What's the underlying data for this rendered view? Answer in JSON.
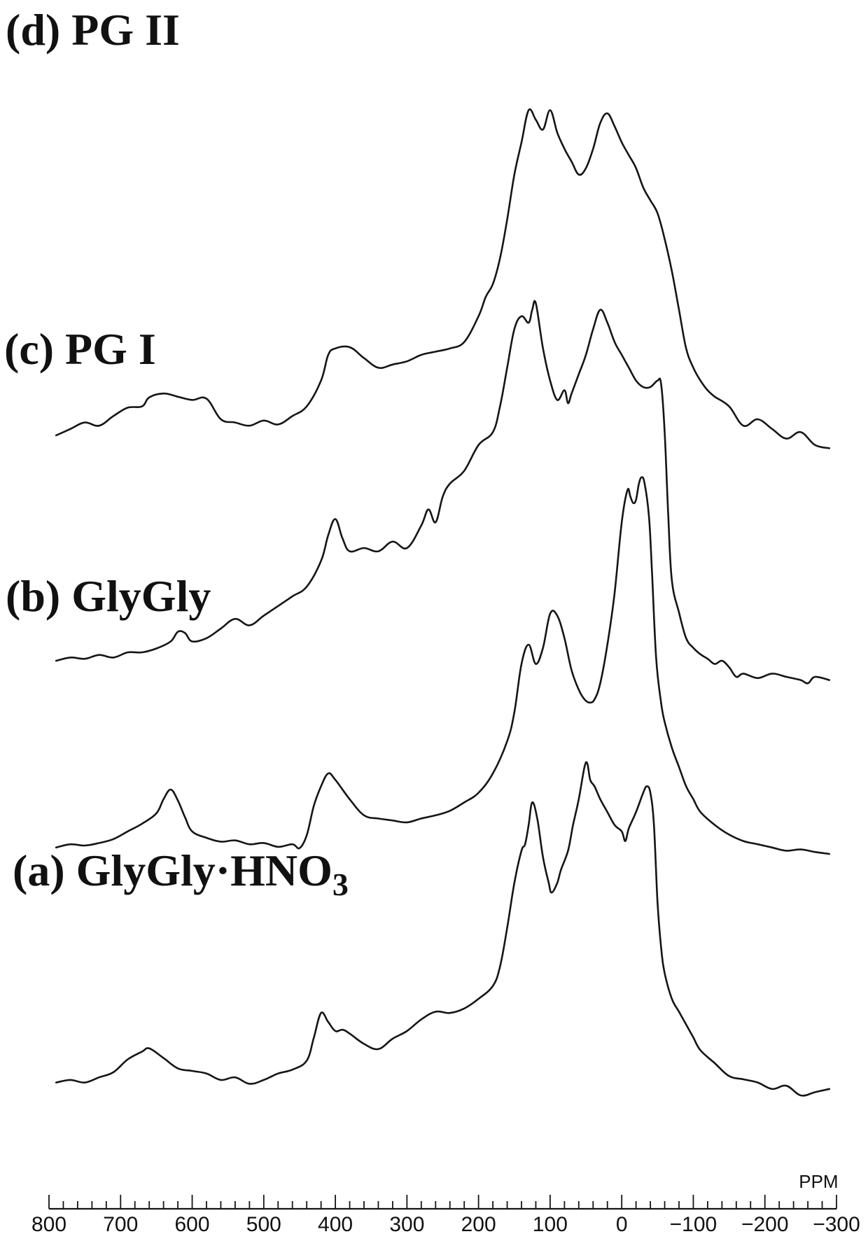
{
  "chart_data": {
    "type": "line",
    "title": "",
    "xlabel": "",
    "ylabel": "",
    "xunit": "PPM",
    "xlim": [
      800,
      -300
    ],
    "x_reversed": true,
    "xticks": [
      800,
      700,
      600,
      500,
      400,
      300,
      200,
      100,
      0,
      -100,
      -200,
      -300
    ],
    "xtick_labels": [
      "800",
      "700",
      "600",
      "500",
      "400",
      "300",
      "200",
      "100",
      "0",
      "−100",
      "−200",
      "−300"
    ],
    "minor_tick_step": 20,
    "grid": false,
    "legend": "none",
    "offset_units": "relative intensity (stacked, 0 = baseline of bottom spectrum)",
    "series": [
      {
        "name": "(a) GlyGly·HNO",
        "subscript": "3",
        "offset": 0,
        "points": [
          [
            790,
            20
          ],
          [
            770,
            24
          ],
          [
            750,
            20
          ],
          [
            730,
            28
          ],
          [
            710,
            36
          ],
          [
            690,
            56
          ],
          [
            670,
            68
          ],
          [
            660,
            73
          ],
          [
            640,
            58
          ],
          [
            620,
            42
          ],
          [
            600,
            38
          ],
          [
            580,
            34
          ],
          [
            560,
            24
          ],
          [
            540,
            28
          ],
          [
            520,
            18
          ],
          [
            500,
            24
          ],
          [
            480,
            34
          ],
          [
            460,
            40
          ],
          [
            440,
            54
          ],
          [
            430,
            90
          ],
          [
            420,
            128
          ],
          [
            410,
            114
          ],
          [
            400,
            100
          ],
          [
            390,
            102
          ],
          [
            380,
            96
          ],
          [
            360,
            80
          ],
          [
            340,
            72
          ],
          [
            320,
            88
          ],
          [
            300,
            100
          ],
          [
            280,
            118
          ],
          [
            260,
            130
          ],
          [
            240,
            128
          ],
          [
            220,
            135
          ],
          [
            200,
            150
          ],
          [
            180,
            170
          ],
          [
            170,
            200
          ],
          [
            160,
            260
          ],
          [
            150,
            330
          ],
          [
            140,
            380
          ],
          [
            135,
            390
          ],
          [
            130,
            420
          ],
          [
            125,
            455
          ],
          [
            118,
            430
          ],
          [
            110,
            370
          ],
          [
            102,
            330
          ],
          [
            98,
            315
          ],
          [
            90,
            330
          ],
          [
            85,
            350
          ],
          [
            75,
            380
          ],
          [
            68,
            420
          ],
          [
            60,
            460
          ],
          [
            52,
            510
          ],
          [
            48,
            515
          ],
          [
            44,
            490
          ],
          [
            38,
            480
          ],
          [
            30,
            460
          ],
          [
            20,
            440
          ],
          [
            10,
            420
          ],
          [
            0,
            410
          ],
          [
            -5,
            395
          ],
          [
            -10,
            415
          ],
          [
            -20,
            440
          ],
          [
            -30,
            470
          ],
          [
            -35,
            480
          ],
          [
            -40,
            470
          ],
          [
            -45,
            420
          ],
          [
            -50,
            300
          ],
          [
            -55,
            230
          ],
          [
            -60,
            190
          ],
          [
            -70,
            150
          ],
          [
            -80,
            130
          ],
          [
            -90,
            110
          ],
          [
            -100,
            90
          ],
          [
            -110,
            70
          ],
          [
            -130,
            50
          ],
          [
            -150,
            30
          ],
          [
            -170,
            25
          ],
          [
            -190,
            20
          ],
          [
            -210,
            10
          ],
          [
            -230,
            15
          ],
          [
            -250,
            0
          ],
          [
            -270,
            5
          ],
          [
            -290,
            10
          ]
        ]
      },
      {
        "name": "(b) GlyGly",
        "offset": 360,
        "points": [
          [
            790,
            25
          ],
          [
            770,
            30
          ],
          [
            750,
            28
          ],
          [
            730,
            32
          ],
          [
            710,
            38
          ],
          [
            690,
            50
          ],
          [
            670,
            62
          ],
          [
            650,
            78
          ],
          [
            640,
            100
          ],
          [
            630,
            115
          ],
          [
            620,
            98
          ],
          [
            610,
            72
          ],
          [
            600,
            50
          ],
          [
            580,
            40
          ],
          [
            560,
            34
          ],
          [
            540,
            36
          ],
          [
            520,
            30
          ],
          [
            500,
            32
          ],
          [
            480,
            26
          ],
          [
            460,
            30
          ],
          [
            450,
            24
          ],
          [
            440,
            44
          ],
          [
            430,
            90
          ],
          [
            420,
            120
          ],
          [
            410,
            140
          ],
          [
            400,
            130
          ],
          [
            380,
            100
          ],
          [
            360,
            75
          ],
          [
            340,
            70
          ],
          [
            320,
            67
          ],
          [
            300,
            64
          ],
          [
            280,
            70
          ],
          [
            260,
            75
          ],
          [
            240,
            82
          ],
          [
            220,
            95
          ],
          [
            200,
            110
          ],
          [
            180,
            140
          ],
          [
            160,
            190
          ],
          [
            150,
            235
          ],
          [
            140,
            310
          ],
          [
            130,
            340
          ],
          [
            120,
            310
          ],
          [
            110,
            335
          ],
          [
            100,
            388
          ],
          [
            90,
            385
          ],
          [
            80,
            350
          ],
          [
            70,
            300
          ],
          [
            60,
            270
          ],
          [
            52,
            255
          ],
          [
            45,
            250
          ],
          [
            38,
            255
          ],
          [
            30,
            280
          ],
          [
            20,
            340
          ],
          [
            10,
            420
          ],
          [
            0,
            530
          ],
          [
            -8,
            580
          ],
          [
            -12,
            570
          ],
          [
            -16,
            560
          ],
          [
            -20,
            565
          ],
          [
            -24,
            590
          ],
          [
            -28,
            600
          ],
          [
            -32,
            590
          ],
          [
            -38,
            540
          ],
          [
            -42,
            460
          ],
          [
            -48,
            320
          ],
          [
            -55,
            250
          ],
          [
            -60,
            220
          ],
          [
            -70,
            180
          ],
          [
            -80,
            150
          ],
          [
            -90,
            120
          ],
          [
            -100,
            100
          ],
          [
            -110,
            80
          ],
          [
            -130,
            60
          ],
          [
            -150,
            45
          ],
          [
            -170,
            35
          ],
          [
            -190,
            30
          ],
          [
            -210,
            25
          ],
          [
            -230,
            20
          ],
          [
            -250,
            22
          ],
          [
            -270,
            18
          ],
          [
            -290,
            15
          ]
        ]
      },
      {
        "name": "(c) PG I",
        "offset": 650,
        "points": [
          [
            790,
            25
          ],
          [
            770,
            30
          ],
          [
            750,
            28
          ],
          [
            730,
            34
          ],
          [
            710,
            30
          ],
          [
            690,
            38
          ],
          [
            670,
            38
          ],
          [
            650,
            44
          ],
          [
            630,
            55
          ],
          [
            620,
            70
          ],
          [
            610,
            68
          ],
          [
            600,
            55
          ],
          [
            580,
            60
          ],
          [
            560,
            75
          ],
          [
            540,
            90
          ],
          [
            520,
            80
          ],
          [
            500,
            95
          ],
          [
            480,
            110
          ],
          [
            460,
            125
          ],
          [
            440,
            140
          ],
          [
            420,
            180
          ],
          [
            410,
            220
          ],
          [
            400,
            245
          ],
          [
            390,
            215
          ],
          [
            380,
            195
          ],
          [
            360,
            200
          ],
          [
            340,
            195
          ],
          [
            320,
            210
          ],
          [
            300,
            200
          ],
          [
            280,
            235
          ],
          [
            270,
            260
          ],
          [
            260,
            240
          ],
          [
            250,
            280
          ],
          [
            240,
            300
          ],
          [
            220,
            320
          ],
          [
            200,
            360
          ],
          [
            180,
            380
          ],
          [
            170,
            420
          ],
          [
            160,
            480
          ],
          [
            150,
            540
          ],
          [
            140,
            560
          ],
          [
            130,
            550
          ],
          [
            125,
            570
          ],
          [
            120,
            580
          ],
          [
            110,
            510
          ],
          [
            100,
            460
          ],
          [
            90,
            430
          ],
          [
            80,
            445
          ],
          [
            75,
            425
          ],
          [
            70,
            440
          ],
          [
            60,
            470
          ],
          [
            50,
            500
          ],
          [
            40,
            540
          ],
          [
            30,
            570
          ],
          [
            20,
            550
          ],
          [
            10,
            520
          ],
          [
            0,
            500
          ],
          [
            -10,
            480
          ],
          [
            -20,
            460
          ],
          [
            -30,
            450
          ],
          [
            -40,
            450
          ],
          [
            -50,
            460
          ],
          [
            -55,
            455
          ],
          [
            -60,
            380
          ],
          [
            -65,
            250
          ],
          [
            -70,
            150
          ],
          [
            -80,
            100
          ],
          [
            -90,
            60
          ],
          [
            -100,
            45
          ],
          [
            -110,
            35
          ],
          [
            -120,
            28
          ],
          [
            -130,
            20
          ],
          [
            -140,
            25
          ],
          [
            -150,
            15
          ],
          [
            -160,
            0
          ],
          [
            -170,
            5
          ],
          [
            -190,
            -2
          ],
          [
            -210,
            5
          ],
          [
            -230,
            0
          ],
          [
            -250,
            -5
          ],
          [
            -260,
            -10
          ],
          [
            -270,
            0
          ],
          [
            -290,
            -5
          ]
        ]
      },
      {
        "name": "(d) PG II",
        "offset": 1000,
        "points": [
          [
            790,
            25
          ],
          [
            770,
            35
          ],
          [
            750,
            45
          ],
          [
            730,
            40
          ],
          [
            710,
            55
          ],
          [
            690,
            68
          ],
          [
            670,
            70
          ],
          [
            660,
            84
          ],
          [
            640,
            90
          ],
          [
            620,
            85
          ],
          [
            600,
            80
          ],
          [
            580,
            82
          ],
          [
            560,
            50
          ],
          [
            540,
            45
          ],
          [
            520,
            40
          ],
          [
            500,
            48
          ],
          [
            480,
            42
          ],
          [
            460,
            55
          ],
          [
            440,
            70
          ],
          [
            420,
            110
          ],
          [
            410,
            150
          ],
          [
            400,
            160
          ],
          [
            380,
            162
          ],
          [
            360,
            145
          ],
          [
            340,
            130
          ],
          [
            320,
            135
          ],
          [
            300,
            140
          ],
          [
            280,
            150
          ],
          [
            260,
            155
          ],
          [
            240,
            160
          ],
          [
            220,
            170
          ],
          [
            200,
            210
          ],
          [
            190,
            240
          ],
          [
            180,
            260
          ],
          [
            170,
            300
          ],
          [
            160,
            360
          ],
          [
            150,
            430
          ],
          [
            140,
            480
          ],
          [
            130,
            530
          ],
          [
            120,
            515
          ],
          [
            110,
            500
          ],
          [
            100,
            530
          ],
          [
            90,
            495
          ],
          [
            80,
            470
          ],
          [
            70,
            450
          ],
          [
            60,
            430
          ],
          [
            50,
            440
          ],
          [
            40,
            470
          ],
          [
            30,
            510
          ],
          [
            20,
            525
          ],
          [
            10,
            505
          ],
          [
            0,
            480
          ],
          [
            -10,
            460
          ],
          [
            -20,
            440
          ],
          [
            -30,
            410
          ],
          [
            -40,
            390
          ],
          [
            -50,
            370
          ],
          [
            -60,
            330
          ],
          [
            -70,
            280
          ],
          [
            -80,
            220
          ],
          [
            -90,
            160
          ],
          [
            -100,
            130
          ],
          [
            -110,
            110
          ],
          [
            -120,
            95
          ],
          [
            -130,
            85
          ],
          [
            -150,
            70
          ],
          [
            -170,
            40
          ],
          [
            -190,
            50
          ],
          [
            -210,
            35
          ],
          [
            -230,
            20
          ],
          [
            -250,
            30
          ],
          [
            -270,
            10
          ],
          [
            -290,
            5
          ]
        ]
      }
    ]
  }
}
